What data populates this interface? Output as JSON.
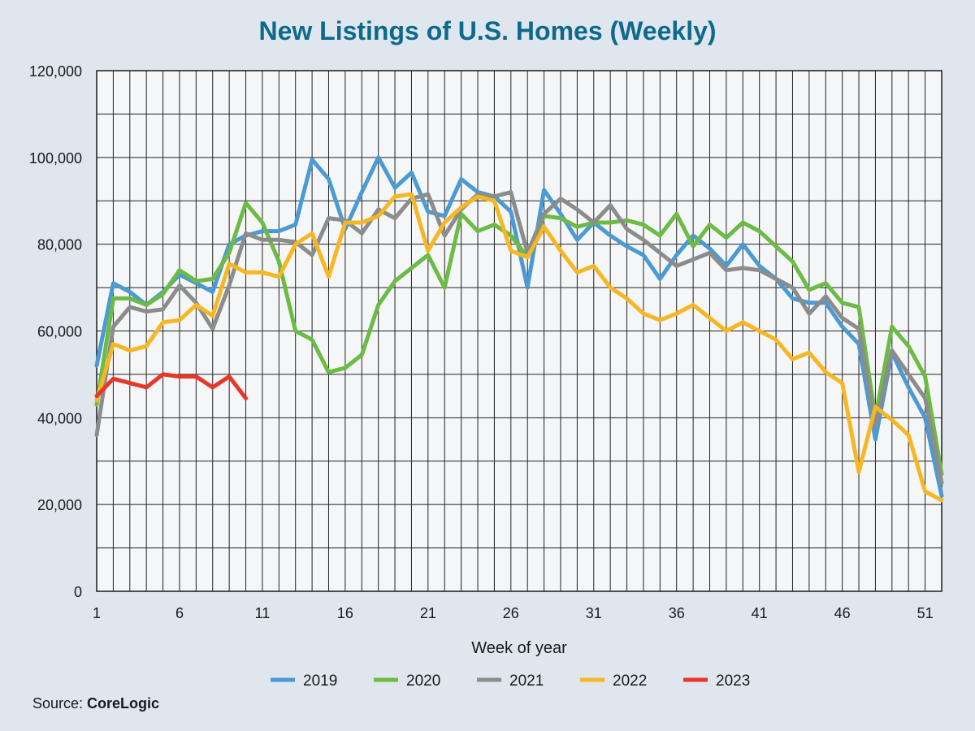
{
  "chart_data": {
    "type": "line",
    "title": "New Listings of U.S. Homes (Weekly)",
    "xlabel": "Week of year",
    "ylabel": "",
    "xlim": [
      1,
      52
    ],
    "ylim": [
      0,
      120000
    ],
    "x_ticks": [
      1,
      6,
      11,
      16,
      21,
      26,
      31,
      36,
      41,
      46,
      51
    ],
    "y_ticks": [
      0,
      20000,
      40000,
      60000,
      80000,
      100000,
      120000
    ],
    "y_tick_labels": [
      "0",
      "20,000",
      "40,000",
      "60,000",
      "80,000",
      "100,000",
      "120,000"
    ],
    "grid": true,
    "legend": "bottom",
    "series": [
      {
        "name": "2019",
        "color": "#4a9ad4",
        "start_week": 1,
        "values": [
          52000,
          71000,
          69000,
          66000,
          69000,
          73000,
          71000,
          69000,
          80000,
          82000,
          83000,
          83000,
          84500,
          99500,
          95000,
          83500,
          92000,
          100000,
          93000,
          96500,
          87500,
          86500,
          95000,
          92000,
          91000,
          87500,
          70000,
          92500,
          87000,
          81000,
          85000,
          82000,
          79500,
          77500,
          72000,
          77500,
          82000,
          79000,
          75000,
          80000,
          75000,
          72000,
          67500,
          66500,
          66500,
          61000,
          57000,
          35000,
          55000,
          47000,
          40000,
          22000
        ]
      },
      {
        "name": "2020",
        "color": "#6cbb45",
        "start_week": 1,
        "values": [
          43000,
          67500,
          67500,
          66000,
          68500,
          74000,
          71500,
          72000,
          78000,
          89500,
          85000,
          76000,
          60000,
          58000,
          50500,
          51500,
          54500,
          66000,
          71500,
          74500,
          77500,
          70000,
          87000,
          83000,
          84500,
          82000,
          77000,
          86500,
          86000,
          84000,
          85000,
          85000,
          85500,
          84500,
          82000,
          87000,
          79500,
          84500,
          81500,
          85000,
          83000,
          79500,
          76000,
          69500,
          71000,
          66500,
          65500,
          40000,
          61000,
          56500,
          49500,
          27000
        ]
      },
      {
        "name": "2021",
        "color": "#8c8c8c",
        "start_week": 1,
        "values": [
          36000,
          61000,
          65500,
          64500,
          65000,
          70500,
          66500,
          60500,
          70500,
          82500,
          81000,
          81000,
          80500,
          77500,
          86000,
          85500,
          82500,
          88000,
          86000,
          90500,
          91500,
          82000,
          88000,
          91500,
          91000,
          92000,
          78000,
          87000,
          90500,
          88000,
          85000,
          89000,
          83500,
          81000,
          78000,
          75000,
          76500,
          78000,
          74000,
          74500,
          74000,
          72000,
          70000,
          64000,
          68000,
          63000,
          60500,
          38000,
          55500,
          50000,
          44500,
          25000
        ]
      },
      {
        "name": "2022",
        "color": "#f7b723",
        "start_week": 1,
        "values": [
          44000,
          57000,
          55500,
          56500,
          62000,
          62500,
          66000,
          63500,
          75500,
          73500,
          73500,
          72500,
          80000,
          82500,
          72500,
          85000,
          85000,
          86500,
          91000,
          91500,
          78500,
          85000,
          88500,
          91000,
          90000,
          78500,
          77000,
          84000,
          78500,
          73500,
          75000,
          70000,
          67500,
          64000,
          62500,
          64000,
          66000,
          63000,
          60000,
          62000,
          60000,
          58000,
          53500,
          55000,
          50500,
          48000,
          27500,
          42500,
          39500,
          36000,
          23000,
          21000
        ]
      },
      {
        "name": "2023",
        "color": "#e8372a",
        "start_week": 1,
        "values": [
          45000,
          49000,
          48000,
          47000,
          50000,
          49500,
          49500,
          47000,
          49500,
          44500
        ]
      }
    ]
  },
  "source": {
    "prefix": "Source: ",
    "name": "CoreLogic"
  }
}
